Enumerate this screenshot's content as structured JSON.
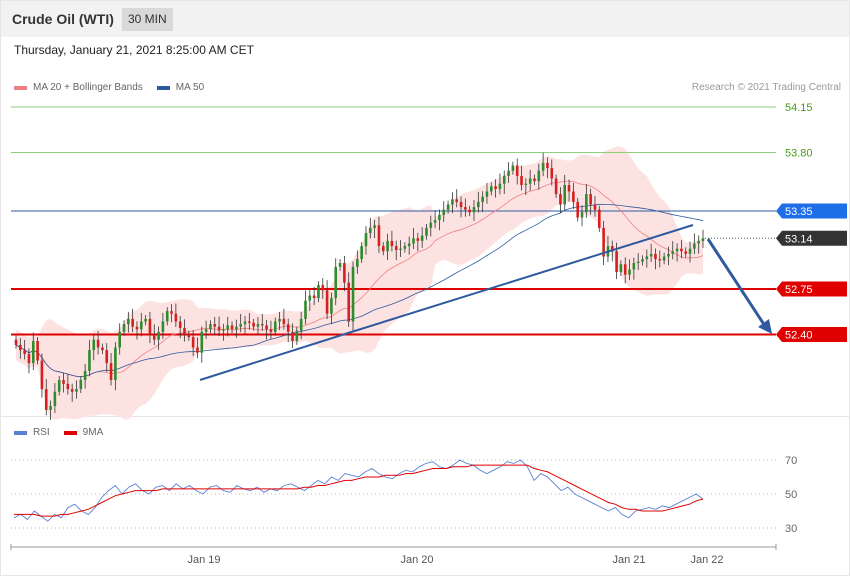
{
  "header": {
    "title": "Crude Oil (WTI)",
    "timeframe": "30 MIN"
  },
  "timestamp": "Thursday, January 21, 2021 8:25:00 AM CET",
  "legend_top": [
    {
      "label": "MA 20 + Bollinger Bands",
      "color": "#f08080"
    },
    {
      "label": "MA 50",
      "color": "#2f5aa0"
    }
  ],
  "legend_bottom": [
    {
      "label": "RSI",
      "color": "#5b7fd6"
    },
    {
      "label": "9MA",
      "color": "#e00000"
    }
  ],
  "copyright": "Research © 2021 Trading Central",
  "colors": {
    "bull": "#2e8b2e",
    "bear": "#d42020",
    "trendline": "#2f5aa0",
    "band": "#fde2e2"
  },
  "chart_data": [
    {
      "type": "candlestick",
      "title": "Crude Oil (WTI)",
      "ylim": [
        51.5,
        54.35
      ],
      "x_ticks": [
        "Jan 19",
        "Jan 20",
        "Jan 21",
        "Jan 22"
      ],
      "levels": [
        {
          "value": 54.15,
          "label": "54.15",
          "style": "target-green"
        },
        {
          "value": 53.8,
          "label": "53.80",
          "style": "target-green"
        },
        {
          "value": 53.35,
          "label": "53.35",
          "style": "pivot-blue"
        },
        {
          "value": 53.14,
          "label": "53.14",
          "style": "last-price"
        },
        {
          "value": 52.75,
          "label": "52.75",
          "style": "support-red"
        },
        {
          "value": 52.4,
          "label": "52.40",
          "style": "support-red"
        }
      ],
      "close": [
        52.32,
        52.28,
        52.25,
        52.18,
        52.35,
        52.2,
        51.98,
        51.82,
        51.85,
        51.96,
        52.05,
        52.02,
        51.98,
        51.96,
        51.98,
        52.05,
        52.12,
        52.28,
        52.36,
        52.3,
        52.28,
        52.18,
        52.05,
        52.3,
        52.42,
        52.48,
        52.52,
        52.46,
        52.44,
        52.5,
        52.52,
        52.4,
        52.36,
        52.42,
        52.5,
        52.58,
        52.56,
        52.5,
        52.45,
        52.4,
        52.38,
        52.3,
        52.26,
        52.42,
        52.44,
        52.48,
        52.46,
        52.43,
        52.44,
        52.47,
        52.44,
        52.46,
        52.48,
        52.5,
        52.49,
        52.46,
        52.48,
        52.47,
        52.44,
        52.42,
        52.5,
        52.52,
        52.48,
        52.42,
        52.35,
        52.43,
        52.52,
        52.66,
        52.7,
        52.68,
        52.78,
        52.74,
        52.56,
        52.68,
        52.92,
        52.95,
        52.8,
        52.5,
        52.92,
        52.98,
        53.08,
        53.18,
        53.22,
        53.24,
        53.08,
        53.04,
        53.12,
        53.08,
        53.05,
        53.06,
        53.08,
        53.1,
        53.14,
        53.12,
        53.16,
        53.22,
        53.26,
        53.28,
        53.32,
        53.36,
        53.4,
        53.44,
        53.42,
        53.38,
        53.36,
        53.34,
        53.38,
        53.42,
        53.46,
        53.5,
        53.54,
        53.52,
        53.56,
        53.62,
        53.66,
        53.7,
        53.62,
        53.55,
        53.56,
        53.6,
        53.58,
        53.66,
        53.72,
        53.68,
        53.6,
        53.48,
        53.4,
        53.55,
        53.5,
        53.42,
        53.3,
        53.34,
        53.48,
        53.4,
        53.36,
        53.22,
        53.0,
        53.08,
        53.04,
        52.88,
        52.94,
        52.86,
        52.9,
        52.95,
        52.96,
        52.98,
        53.0,
        53.02,
        52.98,
        52.97,
        53.0,
        53.02,
        53.04,
        53.06,
        53.04,
        53.02,
        53.06,
        53.1,
        53.12,
        53.14
      ]
    },
    {
      "type": "line",
      "title": "RSI",
      "ylim": [
        15,
        85
      ],
      "y_ticks": [
        70,
        50,
        30
      ],
      "series": [
        {
          "name": "RSI",
          "values": [
            36,
            38,
            35,
            40,
            37,
            34,
            38,
            36,
            42,
            44,
            40,
            38,
            42,
            48,
            52,
            55,
            50,
            54,
            56,
            52,
            50,
            54,
            55,
            52,
            56,
            53,
            55,
            52,
            50,
            54,
            55,
            52,
            51,
            55,
            53,
            52,
            54,
            51,
            53,
            52,
            55,
            56,
            54,
            52,
            55,
            58,
            56,
            60,
            58,
            62,
            61,
            60,
            63,
            65,
            62,
            60,
            59,
            62,
            64,
            63,
            66,
            68,
            69,
            66,
            65,
            67,
            70,
            68,
            67,
            64,
            62,
            64,
            66,
            69,
            68,
            70,
            66,
            58,
            62,
            60,
            56,
            52,
            54,
            50,
            48,
            46,
            44,
            42,
            40,
            42,
            38,
            36,
            40,
            41,
            42,
            41,
            43,
            42,
            44,
            46,
            48,
            50,
            47
          ]
        },
        {
          "name": "9MA",
          "values": [
            38,
            38,
            38,
            38,
            37,
            37,
            37,
            38,
            38,
            39,
            40,
            41,
            43,
            45,
            47,
            49,
            50,
            51,
            52,
            52,
            52,
            52,
            53,
            53,
            53,
            53,
            53,
            53,
            53,
            53,
            53,
            53,
            53,
            53,
            53,
            53,
            53,
            53,
            53,
            53,
            53,
            53,
            53,
            54,
            54,
            55,
            55,
            56,
            57,
            58,
            58,
            59,
            60,
            60,
            60,
            61,
            61,
            61,
            62,
            62,
            63,
            64,
            65,
            65,
            65,
            66,
            66,
            66,
            67,
            67,
            67,
            67,
            67,
            67,
            67,
            67,
            67,
            65,
            64,
            63,
            61,
            59,
            57,
            55,
            53,
            51,
            49,
            47,
            45,
            44,
            42,
            41,
            41,
            40,
            40,
            40,
            40,
            41,
            42,
            43,
            44,
            46,
            47
          ]
        }
      ]
    }
  ]
}
